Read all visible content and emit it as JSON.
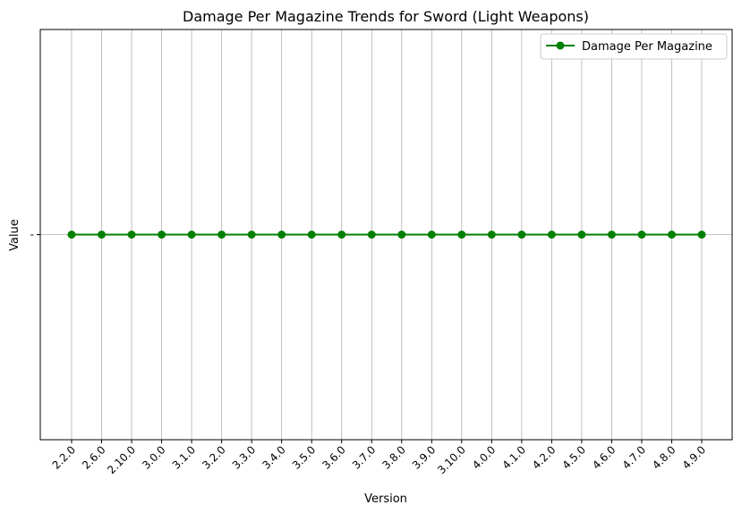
{
  "chart_data": {
    "type": "line",
    "title": "Damage Per Magazine Trends for Sword (Light Weapons)",
    "xlabel": "Version",
    "ylabel": "Value",
    "categories": [
      "2.2.0",
      "2.6.0",
      "2.10.0",
      "3.0.0",
      "3.1.0",
      "3.2.0",
      "3.3.0",
      "3.4.0",
      "3.5.0",
      "3.6.0",
      "3.7.0",
      "3.8.0",
      "3.9.0",
      "3.10.0",
      "4.0.0",
      "4.1.0",
      "4.2.0",
      "4.5.0",
      "4.6.0",
      "4.7.0",
      "4.8.0",
      "4.9.0"
    ],
    "y_tick_labels": [
      "-"
    ],
    "series": [
      {
        "name": "Damage Per Magazine",
        "color": "#008000",
        "values": [
          "-",
          "-",
          "-",
          "-",
          "-",
          "-",
          "-",
          "-",
          "-",
          "-",
          "-",
          "-",
          "-",
          "-",
          "-",
          "-",
          "-",
          "-",
          "-",
          "-",
          "-",
          "-"
        ]
      }
    ],
    "grid": true,
    "legend_position": "top-right",
    "marker": "circle"
  }
}
